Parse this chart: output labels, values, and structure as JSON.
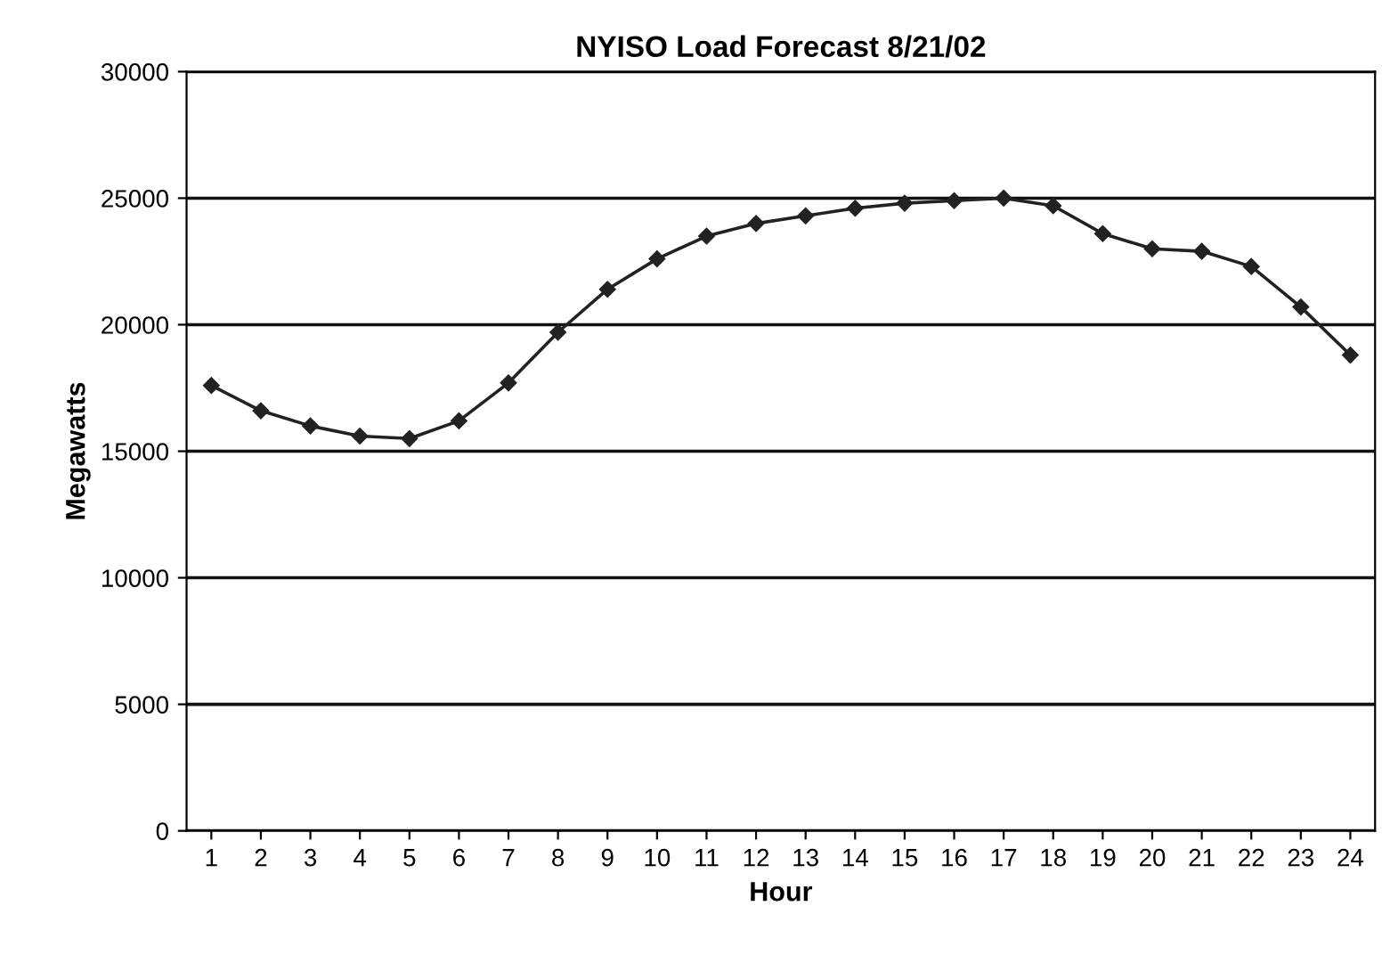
{
  "chart_data": {
    "type": "line",
    "title": "NYISO Load Forecast 8/21/02",
    "xlabel": "Hour",
    "ylabel": "Megawatts",
    "categories": [
      "1",
      "2",
      "3",
      "4",
      "5",
      "6",
      "7",
      "8",
      "9",
      "10",
      "11",
      "12",
      "13",
      "14",
      "15",
      "16",
      "17",
      "18",
      "19",
      "20",
      "21",
      "22",
      "23",
      "24"
    ],
    "series": [
      {
        "color": "#222222",
        "values": [
          17600,
          16600,
          16000,
          15600,
          15500,
          16200,
          17700,
          19700,
          21400,
          22600,
          23500,
          24000,
          24300,
          24600,
          24800,
          24900,
          25000,
          24700,
          23600,
          23000,
          22900,
          22300,
          20700,
          18800
        ]
      }
    ],
    "ylim": [
      0,
      30000
    ],
    "yticks": [
      0,
      5000,
      10000,
      15000,
      20000,
      25000,
      30000
    ],
    "grid": "y",
    "marker": "diamond",
    "line_style": "solid"
  }
}
